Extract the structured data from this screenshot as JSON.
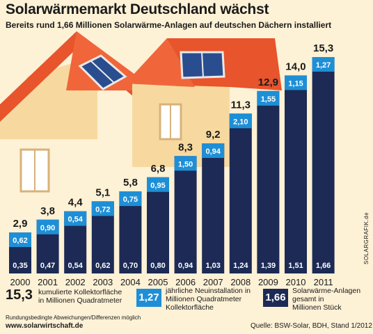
{
  "title": "Solarwärmemarkt Deutschland wächst",
  "subtitle": "Bereits rund 1,66 Millionen Solarwärme-Anlagen auf deutschen Dächern installiert",
  "chart_data": {
    "type": "bar",
    "categories": [
      "2000",
      "2001",
      "2002",
      "2003",
      "2004",
      "2005",
      "2006",
      "2007",
      "2008",
      "2009",
      "2010",
      "2011"
    ],
    "series": [
      {
        "name": "Solarwärme-Anlagen gesamt in Millionen Stück",
        "values": [
          0.35,
          0.47,
          0.54,
          0.62,
          0.7,
          0.8,
          0.94,
          1.03,
          1.24,
          1.39,
          1.51,
          1.66
        ],
        "labels": [
          "0,35",
          "0,47",
          "0,54",
          "0,62",
          "0,70",
          "0,80",
          "0,94",
          "1,03",
          "1,24",
          "1,39",
          "1,51",
          "1,66"
        ]
      },
      {
        "name": "jährliche Neuinstallation in Millionen Quadratmeter Kollektorfläche",
        "values": [
          0.62,
          0.9,
          0.54,
          0.72,
          0.75,
          0.95,
          1.5,
          0.94,
          2.1,
          1.55,
          1.15,
          1.27
        ],
        "labels": [
          "0,62",
          "0,90",
          "0,54",
          "0,72",
          "0,75",
          "0,95",
          "1,50",
          "0,94",
          "2,10",
          "1,55",
          "1,15",
          "1,27"
        ]
      },
      {
        "name": "kumulierte Kollektorfläche in Millionen Quadratmeter",
        "values": [
          2.9,
          3.8,
          4.4,
          5.1,
          5.8,
          6.8,
          8.3,
          9.2,
          11.3,
          12.9,
          14.0,
          15.3
        ],
        "labels": [
          "2,9",
          "3,8",
          "4,4",
          "5,1",
          "5,8",
          "6,8",
          "8,3",
          "9,2",
          "11,3",
          "12,9",
          "14,0",
          "15,3"
        ]
      }
    ],
    "ylim": [
      0,
      15.3
    ],
    "colors": {
      "total_units": "#1c2a55",
      "annual": "#1e8fd6",
      "background": "#fdf1d6",
      "roof": "#e8542c",
      "house": "#f7d9a0"
    }
  },
  "legend": [
    {
      "value": "15,3",
      "text_lines": [
        "kumulierte Kollektorfläche",
        "in Millionen Quadratmeter"
      ]
    },
    {
      "value": "1,27",
      "text_lines": [
        "jährliche Neuinstallation in",
        "Millionen Quadratmeter",
        "Kollektorfläche"
      ]
    },
    {
      "value": "1,66",
      "text_lines": [
        "Solarwärme-Anlagen",
        "gesamt in",
        "Millionen Stück"
      ]
    }
  ],
  "footnote": "Rundungsbedingte Abweichungen/Differenzen möglich",
  "website": "www.solarwirtschaft.de",
  "source": "Quelle: BSW-Solar, BDH, Stand 1/2012",
  "credit": "SOLARGRAFIK.de"
}
